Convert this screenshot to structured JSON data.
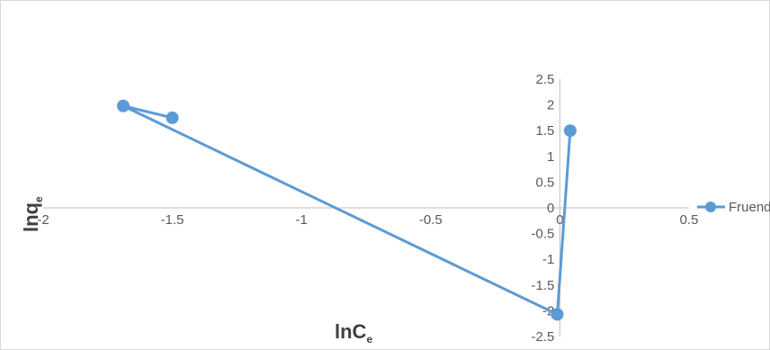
{
  "chart_data": {
    "type": "scatter",
    "title": "",
    "xlabel": {
      "main": "lnC",
      "sub": "e"
    },
    "ylabel": {
      "main": "lnq",
      "sub": "e"
    },
    "xlim": [
      -2,
      0.5
    ],
    "ylim": [
      -2.5,
      2.5
    ],
    "x_ticks": [
      "-2",
      "-1.5",
      "-1",
      "-0.5",
      "0",
      "0.5"
    ],
    "y_ticks": [
      "-2.5",
      "-2",
      "-1.5",
      "-1",
      "-0.5",
      "0",
      "0.5",
      "1",
      "1.5",
      "2",
      "2.5"
    ],
    "grid": false,
    "legend_position": "right",
    "series": [
      {
        "name": "Fruendl..",
        "color": "#5b9bd5",
        "marker": "circle",
        "lines": true,
        "points": [
          {
            "x": -1.5,
            "y": 1.75
          },
          {
            "x": -1.69,
            "y": 1.98
          },
          {
            "x": -0.01,
            "y": -2.07
          },
          {
            "x": 0.04,
            "y": 1.5
          }
        ]
      }
    ]
  }
}
